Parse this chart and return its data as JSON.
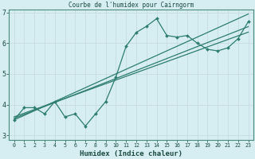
{
  "title": "Courbe de l'humidex pour Cairngorm",
  "xlabel": "Humidex (Indice chaleur)",
  "background_color": "#d6eef2",
  "grid_color": "#c8dee4",
  "line_color": "#2e7d6e",
  "x_data": [
    0,
    1,
    2,
    3,
    4,
    5,
    6,
    7,
    8,
    9,
    10,
    11,
    12,
    13,
    14,
    15,
    16,
    17,
    18,
    19,
    20,
    21,
    22,
    23
  ],
  "y_main": [
    3.5,
    3.9,
    3.9,
    3.7,
    4.1,
    3.6,
    3.7,
    3.3,
    3.7,
    4.1,
    4.9,
    5.9,
    6.35,
    6.55,
    6.8,
    6.25,
    6.2,
    6.25,
    6.0,
    5.8,
    5.75,
    5.85,
    6.15,
    6.7
  ],
  "y_line1": [
    3.55,
    3.68,
    3.81,
    3.94,
    4.07,
    4.2,
    4.33,
    4.46,
    4.59,
    4.72,
    4.85,
    4.98,
    5.11,
    5.24,
    5.37,
    5.5,
    5.63,
    5.76,
    5.89,
    6.02,
    6.15,
    6.28,
    6.41,
    6.54
  ],
  "y_line2": [
    3.6,
    3.72,
    3.84,
    3.96,
    4.08,
    4.2,
    4.32,
    4.44,
    4.56,
    4.68,
    4.8,
    4.92,
    5.04,
    5.16,
    5.28,
    5.4,
    5.52,
    5.64,
    5.76,
    5.88,
    6.0,
    6.12,
    6.24,
    6.36
  ],
  "y_line3": [
    3.5,
    3.65,
    3.8,
    3.95,
    4.1,
    4.25,
    4.4,
    4.55,
    4.7,
    4.85,
    5.0,
    5.15,
    5.3,
    5.45,
    5.6,
    5.75,
    5.9,
    6.05,
    6.2,
    6.35,
    6.5,
    6.65,
    6.8,
    6.95
  ],
  "xlim": [
    -0.5,
    23.5
  ],
  "ylim": [
    2.85,
    7.1
  ],
  "yticks": [
    3,
    4,
    5,
    6,
    7
  ],
  "xticks": [
    0,
    1,
    2,
    3,
    4,
    5,
    6,
    7,
    8,
    9,
    10,
    11,
    12,
    13,
    14,
    15,
    16,
    17,
    18,
    19,
    20,
    21,
    22,
    23
  ]
}
